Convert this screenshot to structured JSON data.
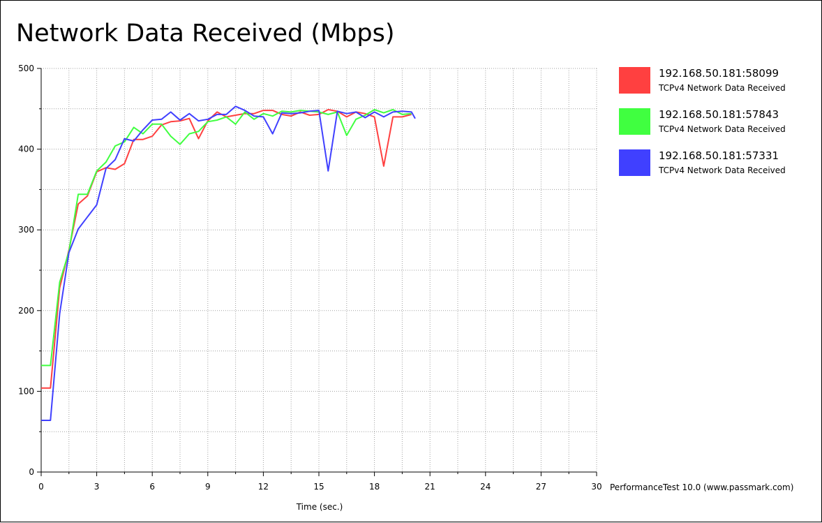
{
  "chart_data": {
    "type": "line",
    "title": "Network Data Received (Mbps)",
    "xlabel": "Time (sec.)",
    "ylabel": "",
    "xlim": [
      0,
      30
    ],
    "ylim": [
      0,
      500
    ],
    "x_ticks": [
      "0",
      "3",
      "6",
      "9",
      "12",
      "15",
      "18",
      "21",
      "24",
      "27",
      "30"
    ],
    "y_ticks": [
      "0",
      "100",
      "200",
      "300",
      "400",
      "500"
    ],
    "grid": true,
    "legend_position": "right",
    "series": [
      {
        "name": "192.168.50.181:58099",
        "description": "TCPv4 Network Data Received",
        "color": "#ff4040",
        "points": [
          [
            0,
            104
          ],
          [
            0.5,
            104
          ],
          [
            1,
            228
          ],
          [
            1.5,
            275
          ],
          [
            2,
            332
          ],
          [
            2.5,
            342
          ],
          [
            3,
            372
          ],
          [
            3.5,
            377
          ],
          [
            4,
            375
          ],
          [
            4.5,
            382
          ],
          [
            5,
            412
          ],
          [
            5.5,
            412
          ],
          [
            6,
            416
          ],
          [
            6.5,
            430
          ],
          [
            7,
            434
          ],
          [
            7.5,
            435
          ],
          [
            8,
            438
          ],
          [
            8.5,
            413
          ],
          [
            9,
            435
          ],
          [
            9.5,
            446
          ],
          [
            10,
            440
          ],
          [
            10.5,
            442
          ],
          [
            11,
            444
          ],
          [
            11.5,
            444
          ],
          [
            12,
            448
          ],
          [
            12.5,
            448
          ],
          [
            13,
            443
          ],
          [
            13.5,
            441
          ],
          [
            14,
            446
          ],
          [
            14.5,
            442
          ],
          [
            15,
            443
          ],
          [
            15.5,
            449
          ],
          [
            16,
            447
          ],
          [
            16.5,
            440
          ],
          [
            17,
            446
          ],
          [
            17.5,
            444
          ],
          [
            18,
            440
          ],
          [
            18.5,
            379
          ],
          [
            19,
            440
          ],
          [
            19.5,
            440
          ],
          [
            20,
            443
          ]
        ]
      },
      {
        "name": "192.168.50.181:57843",
        "description": "TCPv4 Network Data Received",
        "color": "#40ff40",
        "points": [
          [
            0,
            132
          ],
          [
            0.5,
            132
          ],
          [
            1,
            235
          ],
          [
            1.5,
            273
          ],
          [
            2,
            344
          ],
          [
            2.5,
            344
          ],
          [
            3,
            373
          ],
          [
            3.5,
            384
          ],
          [
            4,
            404
          ],
          [
            4.5,
            409
          ],
          [
            5,
            427
          ],
          [
            5.5,
            419
          ],
          [
            6,
            431
          ],
          [
            6.5,
            431
          ],
          [
            7,
            416
          ],
          [
            7.5,
            406
          ],
          [
            8,
            419
          ],
          [
            8.5,
            422
          ],
          [
            9,
            434
          ],
          [
            9.5,
            436
          ],
          [
            10,
            440
          ],
          [
            10.5,
            431
          ],
          [
            11,
            446
          ],
          [
            11.5,
            437
          ],
          [
            12,
            444
          ],
          [
            12.5,
            441
          ],
          [
            13,
            447
          ],
          [
            13.5,
            446
          ],
          [
            14,
            448
          ],
          [
            14.5,
            447
          ],
          [
            15,
            446
          ],
          [
            15.5,
            443
          ],
          [
            16,
            446
          ],
          [
            16.5,
            417
          ],
          [
            17,
            437
          ],
          [
            17.5,
            442
          ],
          [
            18,
            449
          ],
          [
            18.5,
            445
          ],
          [
            19,
            449
          ],
          [
            19.5,
            443
          ],
          [
            20,
            444
          ]
        ]
      },
      {
        "name": "192.168.50.181:57331",
        "description": "TCPv4 Network Data Received",
        "color": "#4040ff",
        "points": [
          [
            0,
            64
          ],
          [
            0.5,
            64
          ],
          [
            1,
            196
          ],
          [
            1.5,
            272
          ],
          [
            2,
            301
          ],
          [
            2.5,
            316
          ],
          [
            3,
            331
          ],
          [
            3.5,
            376
          ],
          [
            4,
            387
          ],
          [
            4.5,
            413
          ],
          [
            5,
            410
          ],
          [
            5.5,
            424
          ],
          [
            6,
            436
          ],
          [
            6.5,
            437
          ],
          [
            7,
            446
          ],
          [
            7.5,
            436
          ],
          [
            8,
            444
          ],
          [
            8.5,
            435
          ],
          [
            9,
            437
          ],
          [
            9.5,
            443
          ],
          [
            10,
            443
          ],
          [
            10.5,
            453
          ],
          [
            11,
            448
          ],
          [
            11.5,
            441
          ],
          [
            12,
            440
          ],
          [
            12.5,
            419
          ],
          [
            13,
            445
          ],
          [
            13.5,
            444
          ],
          [
            14,
            445
          ],
          [
            14.5,
            447
          ],
          [
            15,
            448
          ],
          [
            15.5,
            373
          ],
          [
            16,
            447
          ],
          [
            16.5,
            444
          ],
          [
            17,
            446
          ],
          [
            17.5,
            439
          ],
          [
            18,
            446
          ],
          [
            18.5,
            440
          ],
          [
            19,
            446
          ],
          [
            19.5,
            447
          ],
          [
            20,
            446
          ],
          [
            20.2,
            438
          ]
        ]
      }
    ]
  },
  "footer": {
    "credit": "PerformanceTest 10.0 (www.passmark.com)"
  }
}
